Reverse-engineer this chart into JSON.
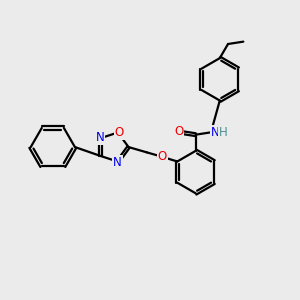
{
  "bg_color": "#ebebeb",
  "atom_colors": {
    "C": "#000000",
    "N": "#0000ee",
    "O": "#ee0000",
    "H": "#4a9090"
  },
  "bond_color": "#000000",
  "line_width": 1.6,
  "dbo": 0.06,
  "figsize": [
    3.0,
    3.0
  ],
  "dpi": 100,
  "xlim": [
    0,
    10
  ],
  "ylim": [
    0,
    10
  ]
}
